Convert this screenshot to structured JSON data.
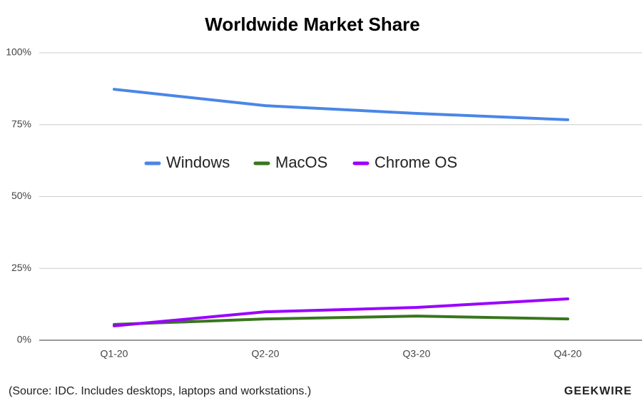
{
  "chart_data": {
    "type": "line",
    "title": "Worldwide Market Share",
    "source": "(Source: IDC. Includes desktops, laptops and workstations.)",
    "brand": "GEEKWIRE",
    "categories": [
      "Q1-20",
      "Q2-20",
      "Q3-20",
      "Q4-20"
    ],
    "series": [
      {
        "name": "Windows",
        "color": "#4a86e8",
        "values": [
          87.3,
          81.6,
          78.9,
          76.7
        ]
      },
      {
        "name": "MacOS",
        "color": "#38761d",
        "values": [
          5.5,
          7.4,
          8.4,
          7.4
        ]
      },
      {
        "name": "Chrome OS",
        "color": "#9900ff",
        "values": [
          5.0,
          9.9,
          11.4,
          14.4
        ]
      }
    ],
    "ylim": [
      0,
      100
    ],
    "yticks": [
      {
        "value": 0,
        "label": "0%"
      },
      {
        "value": 25,
        "label": "25%"
      },
      {
        "value": 50,
        "label": "50%"
      },
      {
        "value": 75,
        "label": "75%"
      },
      {
        "value": 100,
        "label": "100%"
      }
    ],
    "grid": true,
    "legend": "center"
  }
}
